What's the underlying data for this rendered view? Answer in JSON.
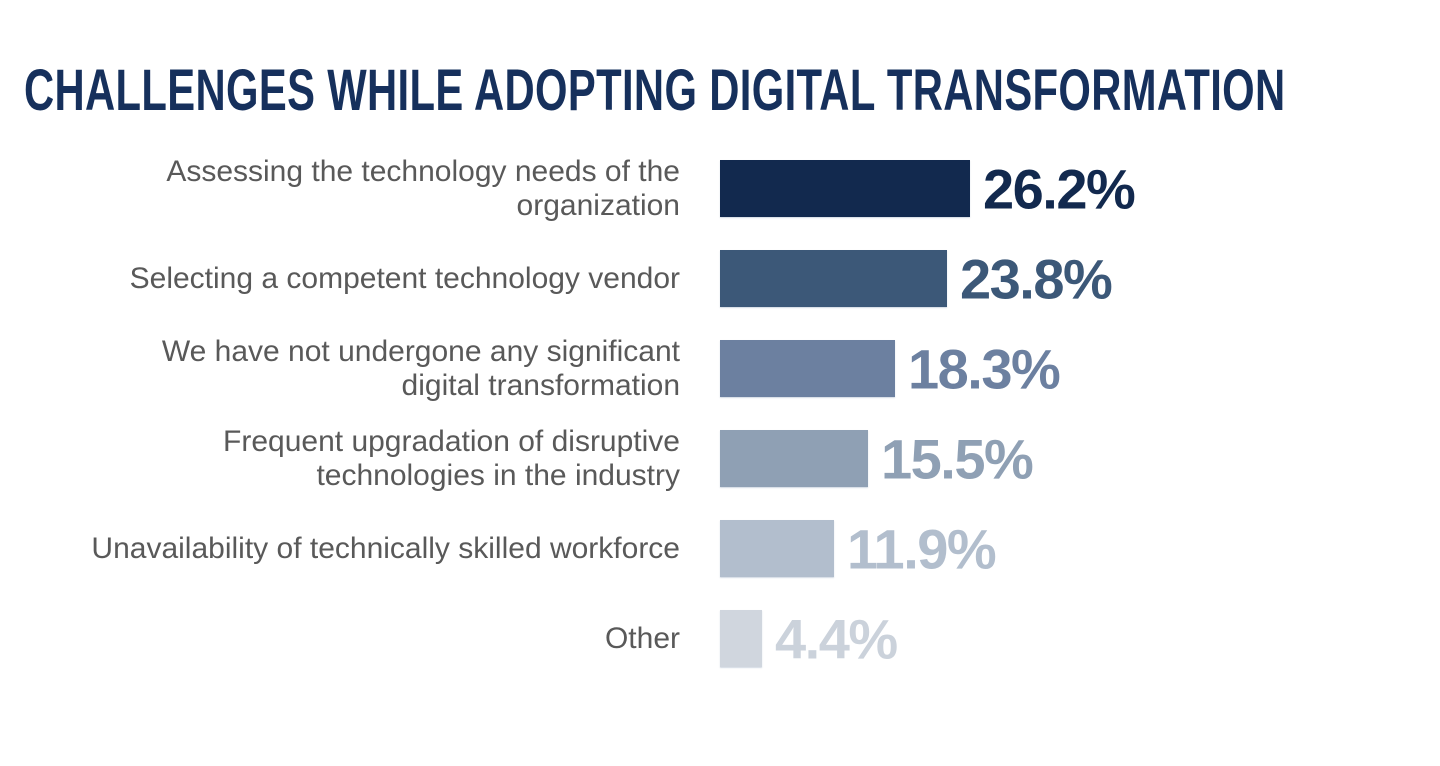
{
  "page": {
    "background": "#ffffff"
  },
  "title": {
    "text": "CHALLENGES WHILE ADOPTING DIGITAL TRANSFORMATION",
    "color": "#16305C"
  },
  "chart_data": {
    "type": "bar",
    "orientation": "horizontal",
    "title": "CHALLENGES WHILE ADOPTING DIGITAL TRANSFORMATION",
    "categories": [
      "Assessing the technology needs of the organization",
      "Selecting a competent technology vendor",
      "We have not undergone any significant digital transformation",
      "Frequent upgradation of disruptive technologies in the industry",
      "Unavailability of technically skilled workforce",
      "Other"
    ],
    "category_line_breaks": [
      [
        "Assessing the technology needs of the",
        "organization"
      ],
      [
        "Selecting a competent technology vendor"
      ],
      [
        "We have not undergone any significant",
        "digital transformation"
      ],
      [
        "Frequent upgradation of disruptive",
        "technologies in the industry"
      ],
      [
        "Unavailability of technically skilled workforce"
      ],
      [
        "Other"
      ]
    ],
    "values": [
      26.2,
      23.8,
      18.3,
      15.5,
      11.9,
      4.4
    ],
    "data_labels": [
      "26.2%",
      "23.8%",
      "18.3%",
      "15.5%",
      "11.9%",
      "4.4%"
    ],
    "bar_colors": [
      "#12294E",
      "#3C5878",
      "#6C80A0",
      "#8FA0B4",
      "#B2BECD",
      "#D0D6DE"
    ],
    "value_label_colors": [
      "#12294E",
      "#3C5878",
      "#6C80A0",
      "#8FA0B4",
      "#B2BECD",
      "#CBD2DB"
    ],
    "category_label_color": "#595959",
    "xlim": [
      0,
      26.2
    ],
    "grid": false,
    "legend": false,
    "axes_visible": false,
    "data_labels_position": "end-of-bar"
  }
}
